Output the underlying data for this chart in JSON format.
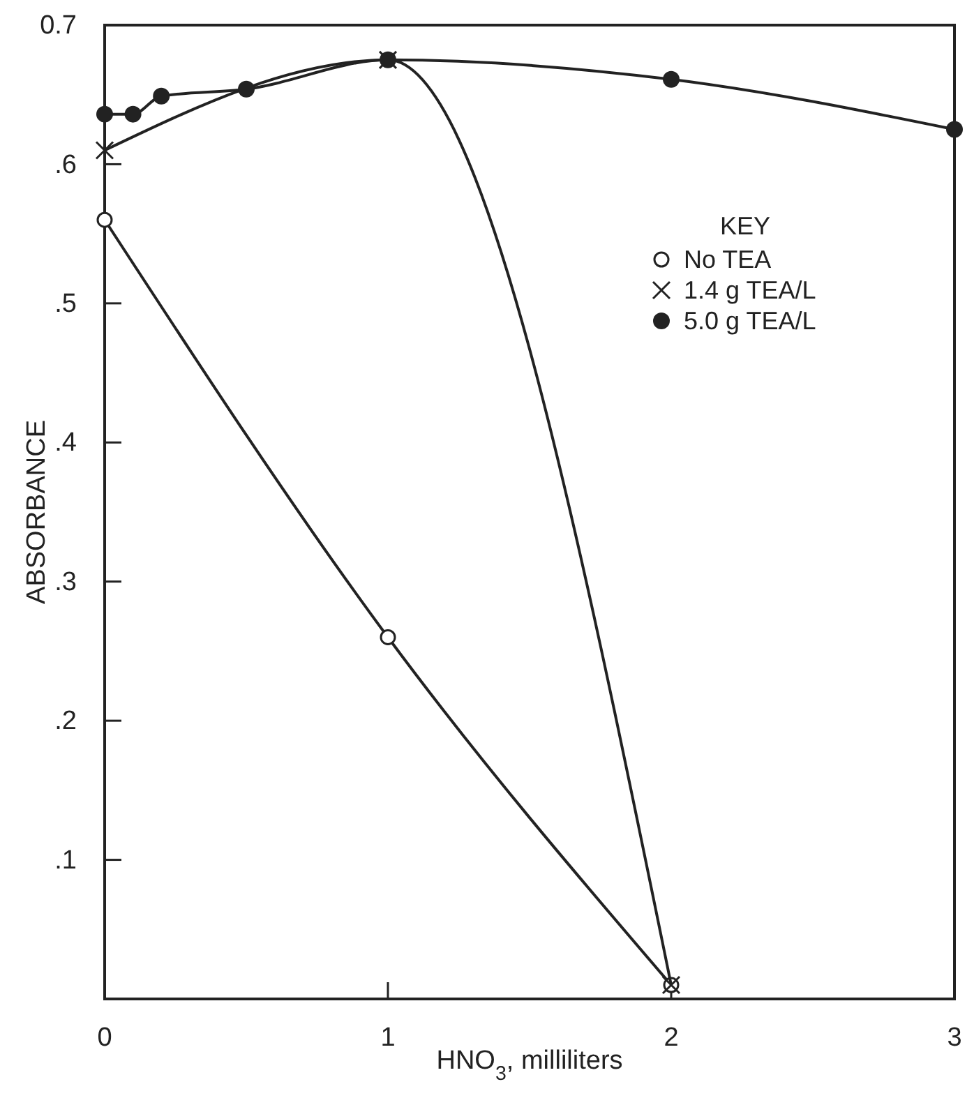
{
  "chart_data": {
    "type": "line",
    "xlabel": "HNO$_{3}$, milliliters",
    "ylabel": "ABSORBANCE",
    "legend_title": "KEY",
    "legend": "top right",
    "grid": false,
    "xlim": [
      0,
      3
    ],
    "xticks": [
      0,
      1,
      2,
      3
    ],
    "ylim": [
      0,
      0.7
    ],
    "yticks": [
      {
        "value": 0.1,
        "label": ".1"
      },
      {
        "value": 0.2,
        "label": ".2"
      },
      {
        "value": 0.3,
        "label": ".3"
      },
      {
        "value": 0.4,
        "label": ".4"
      },
      {
        "value": 0.5,
        "label": ".5"
      },
      {
        "value": 0.6,
        "label": ".6"
      },
      0.7
    ],
    "series": [
      {
        "name": "No TEA",
        "color": "#222222",
        "marker": "circle",
        "colors": [
          "#ffffff",
          "#ffffff",
          "#ffffff"
        ],
        "x": [
          0,
          1,
          2
        ],
        "values": [
          0.56,
          0.26,
          0.01
        ]
      },
      {
        "name": "1.4 g TEA/L",
        "color": "#222222",
        "marker": "cross",
        "x": [
          0,
          1,
          2
        ],
        "values": [
          0.61,
          0.675,
          0.01
        ]
      },
      {
        "name": "5.0 g TEA/L",
        "color": "#222222",
        "marker": "circle",
        "x": [
          0,
          0.1,
          0.2,
          0.5,
          1,
          2,
          3
        ],
        "values": [
          0.636,
          0.636,
          0.649,
          0.654,
          0.675,
          0.661,
          0.625
        ]
      }
    ]
  }
}
